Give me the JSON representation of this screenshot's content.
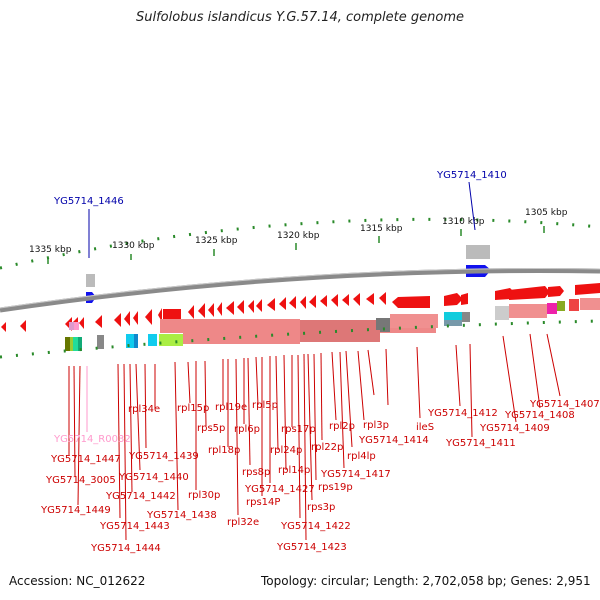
{
  "title": "Sulfolobus islandicus Y.G.57.14, complete genome",
  "footer": {
    "accession": "Accession: NC_012622",
    "topology": "Topology: circular; Length: 2,702,058 bp; Genes: 2,951"
  },
  "colors": {
    "gene_label": "#cc0000",
    "highlight_label": "#0000aa",
    "rna_label": "#ff99cc",
    "forward_strand": "#ee1111",
    "backbone": "#888888",
    "tick": "#118811"
  },
  "ruler_labels": [
    {
      "name": "tick-label-1335",
      "text": "1335 kbp"
    },
    {
      "name": "tick-label-1330",
      "text": "1330 kbp"
    },
    {
      "name": "tick-label-1325",
      "text": "1325 kbp"
    },
    {
      "name": "tick-label-1320",
      "text": "1320 kbp"
    },
    {
      "name": "tick-label-1315",
      "text": "1315 kbp"
    },
    {
      "name": "tick-label-1310",
      "text": "1310 kbp"
    },
    {
      "name": "tick-label-1305",
      "text": "1305 kbp"
    }
  ],
  "top_labels": [
    {
      "name": "label-yg5714-1446",
      "text": "YG5714_1446"
    },
    {
      "name": "label-yg5714-1410",
      "text": "YG5714_1410"
    }
  ],
  "gene_labels": [
    {
      "name": "label-yg5714-r0032",
      "text": "YG5714_R0032"
    },
    {
      "name": "label-yg5714-1447",
      "text": "YG5714_1447"
    },
    {
      "name": "label-yg5714-3005",
      "text": "YG5714_3005"
    },
    {
      "name": "label-yg5714-1449",
      "text": "YG5714_1449"
    },
    {
      "name": "label-rpl34e",
      "text": "rpl34e"
    },
    {
      "name": "label-yg5714-1439",
      "text": "YG5714_1439"
    },
    {
      "name": "label-yg5714-1440",
      "text": "YG5714_1440"
    },
    {
      "name": "label-yg5714-1442",
      "text": "YG5714_1442"
    },
    {
      "name": "label-yg5714-1443",
      "text": "YG5714_1443"
    },
    {
      "name": "label-yg5714-1444",
      "text": "YG5714_1444"
    },
    {
      "name": "label-rpl15p",
      "text": "rpl15p"
    },
    {
      "name": "label-rps5p",
      "text": "rps5p"
    },
    {
      "name": "label-rpl30p",
      "text": "rpl30p"
    },
    {
      "name": "label-yg5714-1438",
      "text": "YG5714_1438"
    },
    {
      "name": "label-rpl19e",
      "text": "rpl19e"
    },
    {
      "name": "label-rpl18p",
      "text": "rpl18p"
    },
    {
      "name": "label-rpl6p",
      "text": "rpl6p"
    },
    {
      "name": "label-rpl32e",
      "text": "rpl32e"
    },
    {
      "name": "label-rpl5p",
      "text": "rpl5p"
    },
    {
      "name": "label-rps8p",
      "text": "rps8p"
    },
    {
      "name": "label-rps14p",
      "text": "rps14P"
    },
    {
      "name": "label-yg5714-1427",
      "text": "YG5714_1427"
    },
    {
      "name": "label-rpl24p",
      "text": "rpl24p"
    },
    {
      "name": "label-rpl14p",
      "text": "rpl14p"
    },
    {
      "name": "label-rps17p",
      "text": "rps17p"
    },
    {
      "name": "label-rps3p",
      "text": "rps3p"
    },
    {
      "name": "label-yg5714-1422",
      "text": "YG5714_1422"
    },
    {
      "name": "label-yg5714-1423",
      "text": "YG5714_1423"
    },
    {
      "name": "label-rpl22p",
      "text": "rpl22p"
    },
    {
      "name": "label-rps19p",
      "text": "rps19p"
    },
    {
      "name": "label-rpl2p",
      "text": "rpl2p"
    },
    {
      "name": "label-yg5714-1417",
      "text": "YG5714_1417"
    },
    {
      "name": "label-rpl4lp",
      "text": "rpl4lp"
    },
    {
      "name": "label-rpl3p",
      "text": "rpl3p"
    },
    {
      "name": "label-yg5714-1414",
      "text": "YG5714_1414"
    },
    {
      "name": "label-iles",
      "text": "ileS"
    },
    {
      "name": "label-yg5714-1412",
      "text": "YG5714_1412"
    },
    {
      "name": "label-yg5714-1411",
      "text": "YG5714_1411"
    },
    {
      "name": "label-yg5714-1409",
      "text": "YG5714_1409"
    },
    {
      "name": "label-yg5714-1408",
      "text": "YG5714_1408"
    },
    {
      "name": "label-yg5714-1407",
      "text": "YG5714_1407"
    }
  ]
}
